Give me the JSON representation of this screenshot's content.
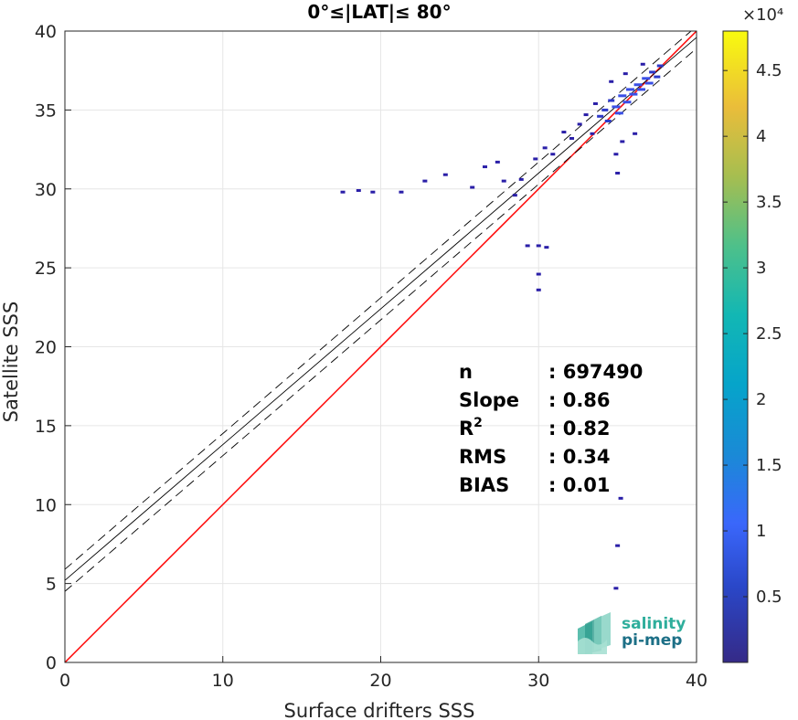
{
  "chart_data": {
    "type": "heatmap",
    "title": "0°≤|LAT|≤ 80°",
    "xlabel": "Surface drifters SSS",
    "ylabel": "Satellite SSS",
    "xlim": [
      0,
      40
    ],
    "ylim": [
      0,
      40
    ],
    "xticks": [
      "0",
      "10",
      "20",
      "30",
      "40"
    ],
    "yticks": [
      "0",
      "5",
      "10",
      "15",
      "20",
      "25",
      "30",
      "35",
      "40"
    ],
    "grid": true,
    "lines": [
      {
        "name": "identity",
        "color": "#ff0000",
        "style": "solid",
        "slope": 1.0,
        "intercept": 0
      },
      {
        "name": "regression",
        "color": "#000000",
        "style": "solid",
        "slope": 0.86,
        "intercept": 5.2
      },
      {
        "name": "regression-upper",
        "color": "#000000",
        "style": "dashed",
        "slope": 0.86,
        "intercept": 5.9
      },
      {
        "name": "regression-lower",
        "color": "#000000",
        "style": "dashed",
        "slope": 0.86,
        "intercept": 4.5
      }
    ],
    "density_points": [
      [
        17.6,
        29.8,
        1
      ],
      [
        18.6,
        29.9,
        1
      ],
      [
        19.5,
        29.8,
        1
      ],
      [
        21.3,
        29.8,
        1
      ],
      [
        22.8,
        30.5,
        1
      ],
      [
        24.1,
        30.9,
        1
      ],
      [
        25.8,
        30.1,
        1
      ],
      [
        26.6,
        31.4,
        1
      ],
      [
        27.4,
        31.7,
        1
      ],
      [
        27.8,
        30.5,
        1
      ],
      [
        28.5,
        29.6,
        1
      ],
      [
        28.9,
        30.6,
        1
      ],
      [
        29.8,
        31.9,
        1
      ],
      [
        30.4,
        32.6,
        1
      ],
      [
        30.9,
        32.2,
        1
      ],
      [
        31.6,
        33.6,
        1
      ],
      [
        32.1,
        33.2,
        1
      ],
      [
        32.6,
        34.1,
        1
      ],
      [
        33.0,
        34.7,
        1
      ],
      [
        33.4,
        33.5,
        1
      ],
      [
        33.6,
        35.4,
        1
      ],
      [
        33.9,
        34.6,
        2
      ],
      [
        34.2,
        35.0,
        2
      ],
      [
        34.4,
        34.3,
        2
      ],
      [
        34.6,
        35.6,
        2
      ],
      [
        34.9,
        35.2,
        3
      ],
      [
        35.1,
        34.8,
        3
      ],
      [
        35.3,
        35.9,
        3
      ],
      [
        35.6,
        35.5,
        3
      ],
      [
        35.8,
        36.3,
        3
      ],
      [
        36.0,
        36.0,
        3
      ],
      [
        36.3,
        36.6,
        3
      ],
      [
        36.5,
        36.3,
        3
      ],
      [
        36.8,
        37.0,
        3
      ],
      [
        37.0,
        36.7,
        3
      ],
      [
        37.2,
        37.4,
        2
      ],
      [
        37.5,
        37.1,
        2
      ],
      [
        37.7,
        37.8,
        2
      ],
      [
        36.6,
        37.9,
        1
      ],
      [
        35.5,
        37.3,
        1
      ],
      [
        34.6,
        36.8,
        1
      ],
      [
        36.1,
        33.5,
        1
      ],
      [
        34.9,
        32.2,
        1
      ],
      [
        35.0,
        31.0,
        1
      ],
      [
        35.3,
        33.0,
        1
      ],
      [
        30.0,
        26.4,
        1
      ],
      [
        30.5,
        26.3,
        1
      ],
      [
        29.3,
        26.4,
        1
      ],
      [
        30.0,
        24.6,
        1
      ],
      [
        30.0,
        23.6,
        1
      ],
      [
        35.2,
        10.4,
        1
      ],
      [
        35.0,
        7.4,
        1
      ],
      [
        34.9,
        4.7,
        1
      ]
    ],
    "stats": [
      {
        "label": "n",
        "value": ": 697490"
      },
      {
        "label": "Slope",
        "value": ": 0.86"
      },
      {
        "label": "R2",
        "value": ": 0.82"
      },
      {
        "label": "RMS",
        "value": ": 0.34"
      },
      {
        "label": "BIAS",
        "value": ": 0.01"
      }
    ],
    "colorbar": {
      "range": [
        0,
        48000
      ],
      "exponent_label": "×10⁴",
      "ticks": [
        "0.5",
        "1",
        "1.5",
        "2",
        "2.5",
        "3",
        "3.5",
        "4",
        "4.5"
      ],
      "tick_values": [
        0.5,
        1,
        1.5,
        2,
        2.5,
        3,
        3.5,
        4,
        4.5
      ],
      "colormap": "parula"
    }
  },
  "logo": {
    "line1": "salinity",
    "line2": "pi-mep"
  }
}
